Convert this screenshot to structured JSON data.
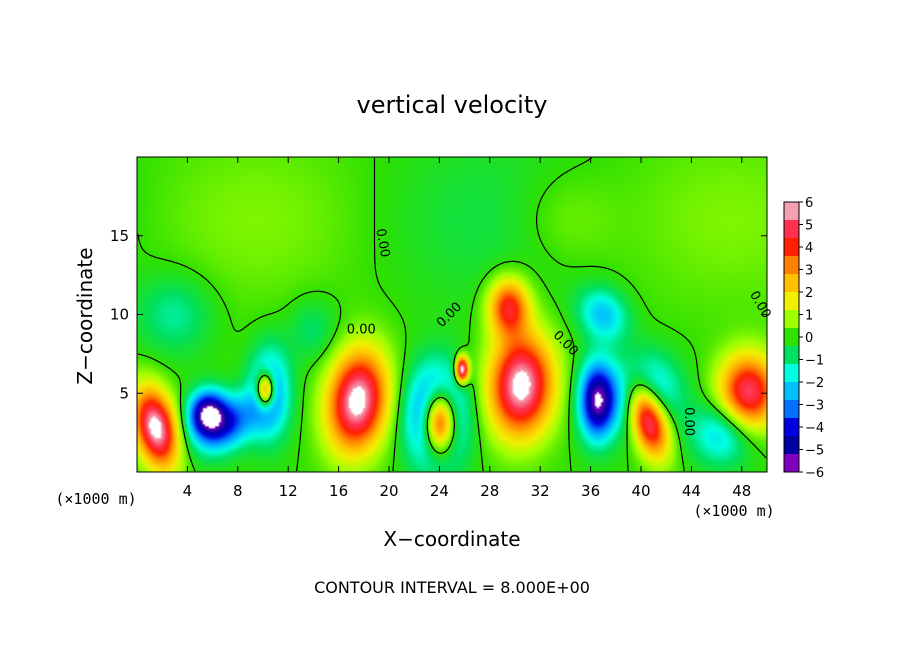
{
  "chart_data": {
    "type": "heatmap",
    "title": "vertical velocity",
    "xlabel": "X−coordinate",
    "ylabel": "Z−coordinate",
    "x_units": "(×1000 m)",
    "z_units": "(×1000 m)",
    "xlim": [
      0,
      50
    ],
    "ylim": [
      0,
      20
    ],
    "xticks": [
      4,
      8,
      12,
      16,
      20,
      24,
      28,
      32,
      36,
      40,
      44,
      48
    ],
    "yticks": [
      5,
      10,
      15
    ],
    "colorbar": {
      "min": -6,
      "max": 6,
      "ticks": [
        6,
        5,
        4,
        3,
        2,
        1,
        0,
        -1,
        -2,
        -3,
        -4,
        -5,
        -6
      ],
      "tick_labels": [
        "6",
        "5",
        "4",
        "3",
        "2",
        "1",
        "0",
        "−1",
        "−2",
        "−3",
        "−4",
        "−5",
        "−6"
      ],
      "colors": [
        "#f4a0b0",
        "#ff3050",
        "#ff2000",
        "#ff8000",
        "#ffc000",
        "#f0f000",
        "#a0ff00",
        "#30e000",
        "#00e060",
        "#00ffe0",
        "#00c0ff",
        "#0070ff",
        "#0000e0",
        "#0000a0",
        "#8000c0"
      ]
    },
    "contour_label": "0.00",
    "contour_interval_text": "CONTOUR INTERVAL = 8.000E+00",
    "cells": [
      {
        "x": 1.5,
        "z": 2.8,
        "sx": 1.6,
        "sz": 2.6,
        "w": 6.5,
        "rot": -0.35
      },
      {
        "x": 5.5,
        "z": 3.8,
        "sx": 1.5,
        "sz": 1.4,
        "w": -5,
        "rot": -0.6
      },
      {
        "x": 7.0,
        "z": 3.0,
        "sx": 2.5,
        "sz": 1.6,
        "w": -4,
        "rot": -0.4
      },
      {
        "x": 10.5,
        "z": 5.0,
        "sx": 1.6,
        "sz": 2.8,
        "w": -3.5,
        "rot": 0
      },
      {
        "x": 10.2,
        "z": 5.2,
        "sx": 0.7,
        "sz": 1.1,
        "w": 6,
        "rot": 0
      },
      {
        "x": 17.5,
        "z": 4.5,
        "sx": 2.3,
        "sz": 3.2,
        "w": 6.5,
        "rot": 0.2
      },
      {
        "x": 23.8,
        "z": 3.5,
        "sx": 2.2,
        "sz": 3.0,
        "w": -6,
        "rot": 0
      },
      {
        "x": 24.0,
        "z": 3.2,
        "sx": 1.3,
        "sz": 2.0,
        "w": 9,
        "rot": 0
      },
      {
        "x": 25.8,
        "z": 6.5,
        "sx": 0.5,
        "sz": 0.8,
        "w": 7,
        "rot": 0
      },
      {
        "x": 30.5,
        "z": 5.5,
        "sx": 2.5,
        "sz": 3.2,
        "w": 6.5,
        "rot": 0.1
      },
      {
        "x": 29.5,
        "z": 10.5,
        "sx": 1.6,
        "sz": 1.8,
        "w": 4.5,
        "rot": 0
      },
      {
        "x": 36.5,
        "z": 4.5,
        "sx": 1.4,
        "sz": 2.4,
        "w": -5.5,
        "rot": 0
      },
      {
        "x": 37.0,
        "z": 10.0,
        "sx": 2.0,
        "sz": 1.6,
        "w": -2.5,
        "rot": 0.4
      },
      {
        "x": 40.5,
        "z": 3.5,
        "sx": 1.4,
        "sz": 2.5,
        "w": 7,
        "rot": -0.4
      },
      {
        "x": 40.0,
        "z": 5.0,
        "sx": 2.8,
        "sz": 2.4,
        "w": -3.5,
        "rot": 0
      },
      {
        "x": 48.5,
        "z": 5.0,
        "sx": 2.3,
        "sz": 2.4,
        "w": 5.5,
        "rot": 0
      },
      {
        "x": 46.5,
        "z": 2.5,
        "sx": 2.5,
        "sz": 2.0,
        "w": -2.5,
        "rot": 0
      },
      {
        "x": 3.0,
        "z": 10.0,
        "sx": 3.0,
        "sz": 2.5,
        "w": -1.3,
        "rot": 0
      },
      {
        "x": 14.0,
        "z": 9.0,
        "sx": 2.0,
        "sz": 2.0,
        "w": -1.0,
        "rot": 0
      },
      {
        "x": 34.0,
        "z": 16.0,
        "sx": 4.0,
        "sz": 3.0,
        "w": 0.7,
        "rot": 0
      }
    ]
  }
}
